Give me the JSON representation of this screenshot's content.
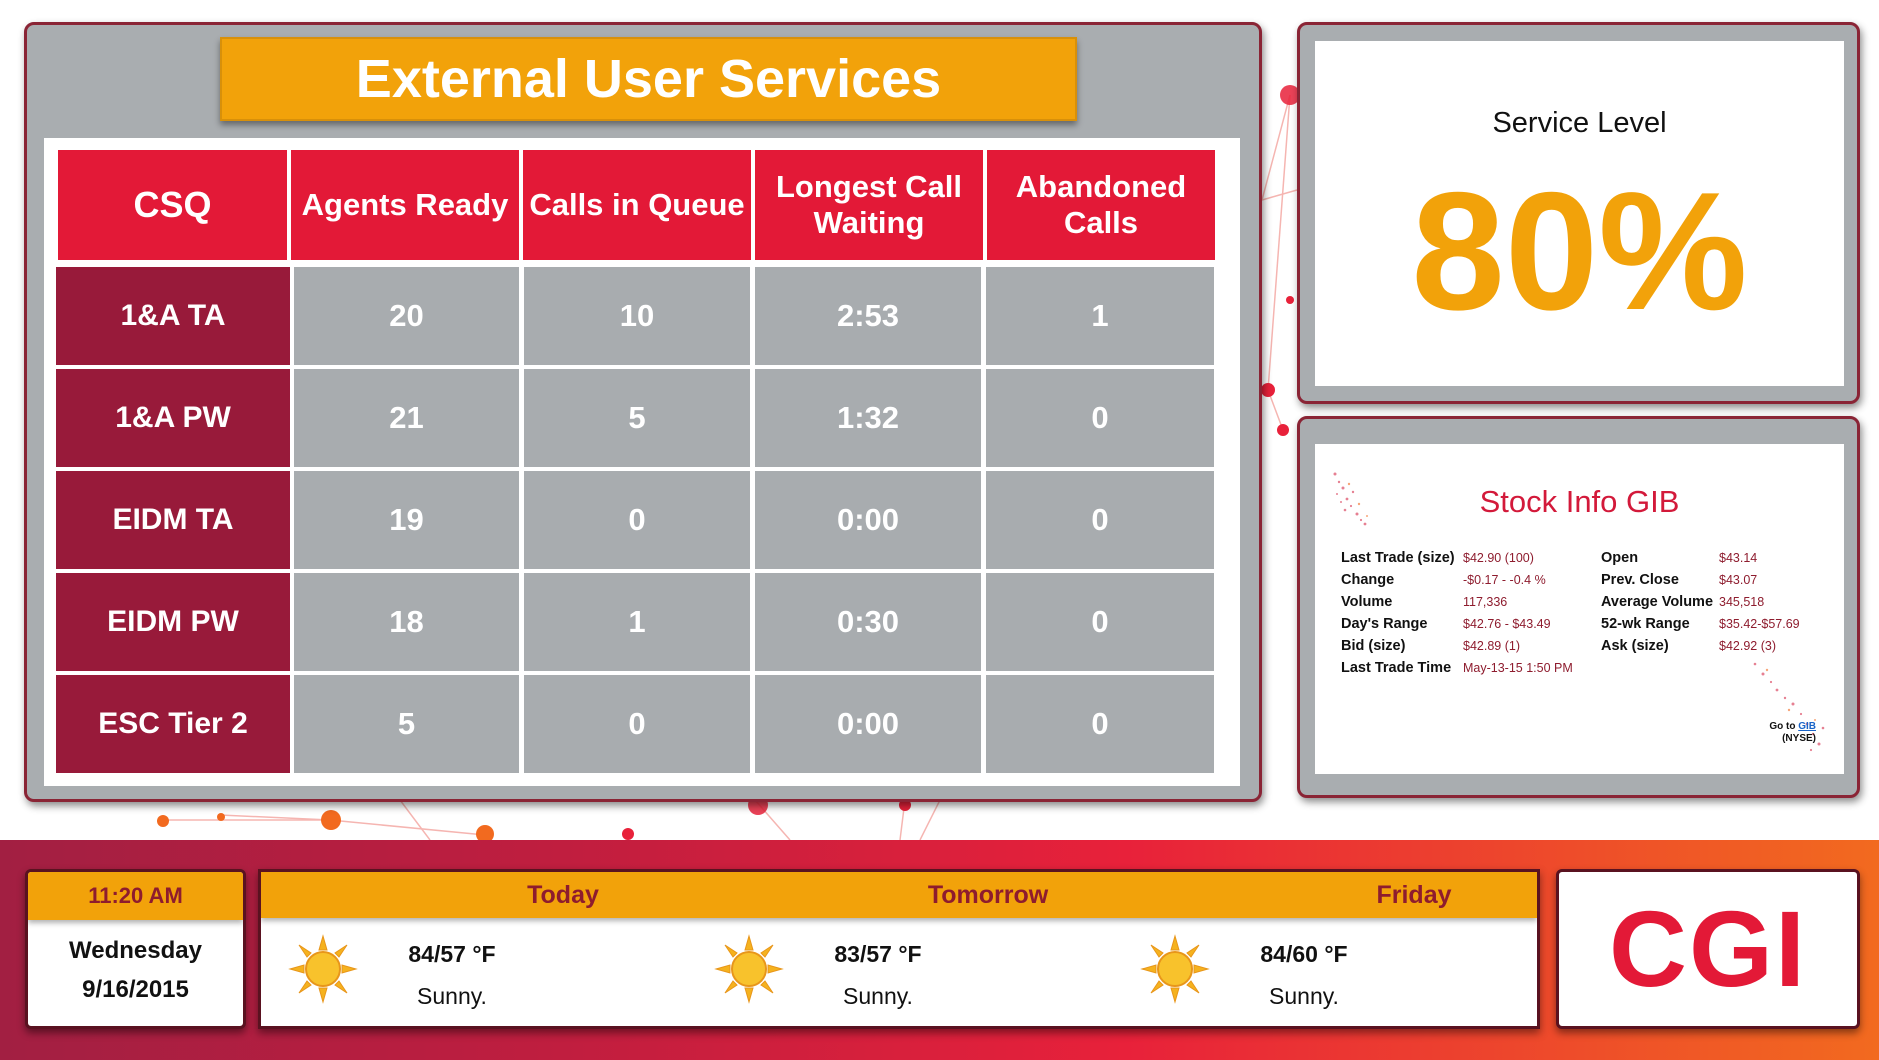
{
  "header": {
    "title": "External User Services"
  },
  "queue_table": {
    "columns": [
      "CSQ",
      "Agents Ready",
      "Calls in Queue",
      "Longest Call Waiting",
      "Abandoned Calls"
    ],
    "rows": [
      {
        "csq": "1&A TA",
        "agents_ready": "20",
        "calls_in_queue": "10",
        "longest_wait": "2:53",
        "abandoned": "1"
      },
      {
        "csq": "1&A PW",
        "agents_ready": "21",
        "calls_in_queue": "5",
        "longest_wait": "1:32",
        "abandoned": "0"
      },
      {
        "csq": "EIDM TA",
        "agents_ready": "19",
        "calls_in_queue": "0",
        "longest_wait": "0:00",
        "abandoned": "0"
      },
      {
        "csq": "EIDM PW",
        "agents_ready": "18",
        "calls_in_queue": "1",
        "longest_wait": "0:30",
        "abandoned": "0"
      },
      {
        "csq": "ESC Tier 2",
        "agents_ready": "5",
        "calls_in_queue": "0",
        "longest_wait": "0:00",
        "abandoned": "0"
      }
    ]
  },
  "service_level": {
    "label": "Service Level",
    "value": "80%"
  },
  "stock": {
    "title": "Stock Info GIB",
    "left": [
      {
        "label": "Last Trade (size)",
        "value": "$42.90 (100)"
      },
      {
        "label": "Change",
        "value": "-$0.17 - -0.4 %"
      },
      {
        "label": "Volume",
        "value": "117,336"
      },
      {
        "label": "Day's Range",
        "value": "$42.76 - $43.49"
      },
      {
        "label": "Bid (size)",
        "value": "$42.89 (1)"
      },
      {
        "label": "Last Trade Time",
        "value": "May-13-15 1:50 PM"
      }
    ],
    "right": [
      {
        "label": "Open",
        "value": "$43.14"
      },
      {
        "label": "Prev. Close",
        "value": "$43.07"
      },
      {
        "label": "Average Volume",
        "value": "345,518"
      },
      {
        "label": "52-wk Range",
        "value": "$35.42-$57.69"
      },
      {
        "label": "Ask (size)",
        "value": "$42.92 (3)"
      }
    ],
    "link": {
      "prefix": "Go to",
      "symbol": "GIB",
      "exchange": "(NYSE)"
    }
  },
  "clock": {
    "time": "11:20 AM",
    "weekday": "Wednesday",
    "date": "9/16/2015"
  },
  "weather": [
    {
      "day": "Today",
      "temp": "84/57 °F",
      "condition": "Sunny.",
      "icon": "sun-icon"
    },
    {
      "day": "Tomorrow",
      "temp": "83/57 °F",
      "condition": "Sunny.",
      "icon": "sun-icon"
    },
    {
      "day": "Friday",
      "temp": "84/60 °F",
      "condition": "Sunny.",
      "icon": "sun-icon"
    }
  ],
  "logo": {
    "text": "CGI"
  },
  "colors": {
    "accent_red": "#e31937",
    "label_maroon": "#981a3a",
    "accent_orange": "#f2a20a",
    "cell_gray": "#a8acaf"
  }
}
